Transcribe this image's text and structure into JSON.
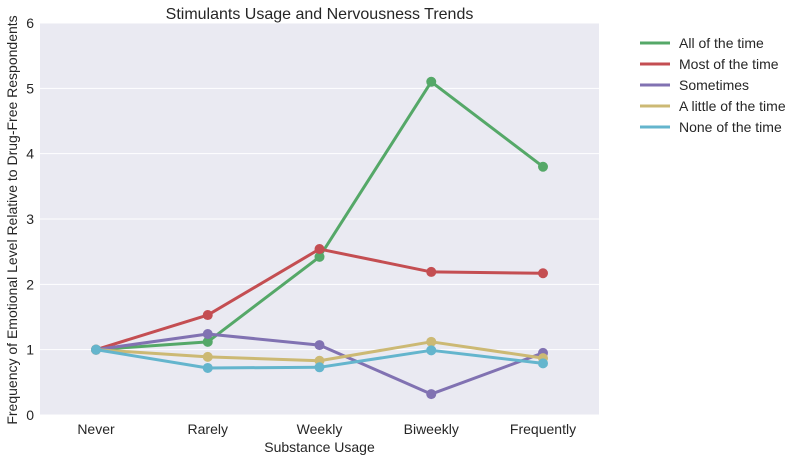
{
  "chart_data": {
    "type": "line",
    "title": "Stimulants Usage and Nervousness Trends",
    "xlabel": "Substance Usage",
    "ylabel": "Frequency of Emotional Level Relative to Drug-Free Respondents",
    "categories": [
      "Never",
      "Rarely",
      "Weekly",
      "Biweekly",
      "Frequently"
    ],
    "ylim": [
      0,
      6
    ],
    "yticks": [
      "0",
      "1",
      "2",
      "3",
      "4",
      "5",
      "6"
    ],
    "grid": true,
    "legend_position": "outside-right",
    "series": [
      {
        "name": "All of the time",
        "color": "#55a868",
        "values": [
          1.0,
          1.12,
          2.42,
          5.1,
          3.8
        ]
      },
      {
        "name": "Most of the time",
        "color": "#c44e52",
        "values": [
          1.0,
          1.53,
          2.54,
          2.19,
          2.17
        ]
      },
      {
        "name": "Sometimes",
        "color": "#8172b2",
        "values": [
          1.0,
          1.24,
          1.07,
          0.32,
          0.95
        ]
      },
      {
        "name": "A little of the time",
        "color": "#ccb974",
        "values": [
          1.0,
          0.89,
          0.83,
          1.12,
          0.87
        ]
      },
      {
        "name": "None of the time",
        "color": "#64b5cd",
        "values": [
          1.0,
          0.72,
          0.73,
          0.99,
          0.79
        ]
      }
    ]
  }
}
